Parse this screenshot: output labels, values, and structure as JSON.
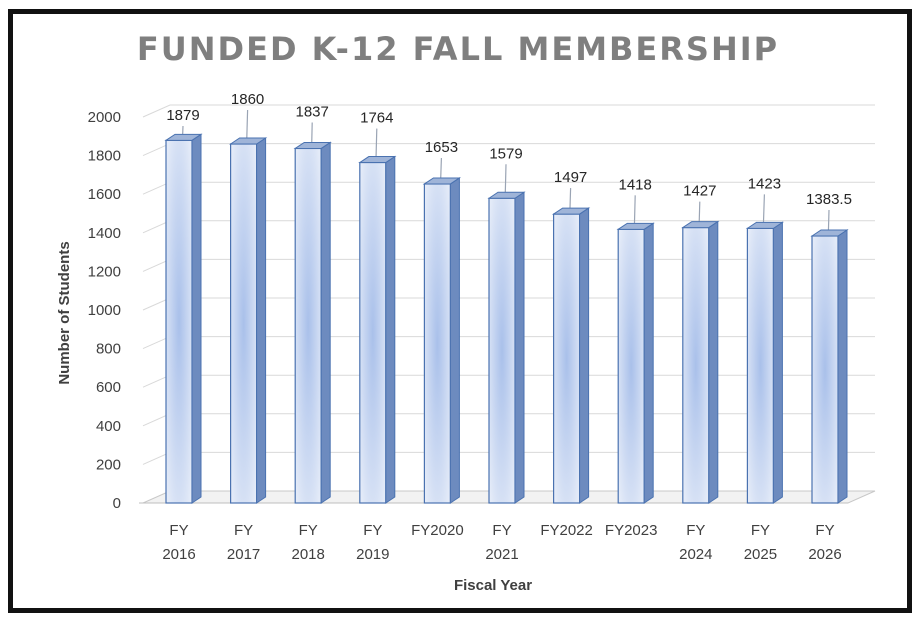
{
  "chart_data": {
    "type": "bar",
    "title": "FUNDED K-12 FALL MEMBERSHIP",
    "xlabel": "Fiscal Year",
    "ylabel": "Number of Students",
    "ylim": [
      0,
      2000
    ],
    "yticks": [
      0,
      200,
      400,
      600,
      800,
      1000,
      1200,
      1400,
      1600,
      1800,
      2000
    ],
    "grid": true,
    "style": "3d-column",
    "colors": {
      "bar": "#c5d5ef",
      "bar_edge": "#4a72b0",
      "gridline": "#d9d9d9"
    },
    "categories": [
      [
        "FY",
        "2016"
      ],
      [
        "FY",
        "2017"
      ],
      [
        "FY",
        "2018"
      ],
      [
        "FY",
        "2019"
      ],
      [
        "FY2020"
      ],
      [
        "FY",
        "2021"
      ],
      [
        "FY2022"
      ],
      [
        "FY2023"
      ],
      [
        "FY",
        "2024"
      ],
      [
        "FY",
        "2025"
      ],
      [
        "FY",
        "2026"
      ]
    ],
    "values": [
      1879,
      1860,
      1837,
      1764,
      1653,
      1579,
      1497,
      1418,
      1427,
      1423,
      1383.5
    ],
    "data_labels": [
      "1879",
      "1860",
      "1837",
      "1764",
      "1653",
      "1579",
      "1497",
      "1418",
      "1427",
      "1423",
      "1383.5"
    ]
  }
}
